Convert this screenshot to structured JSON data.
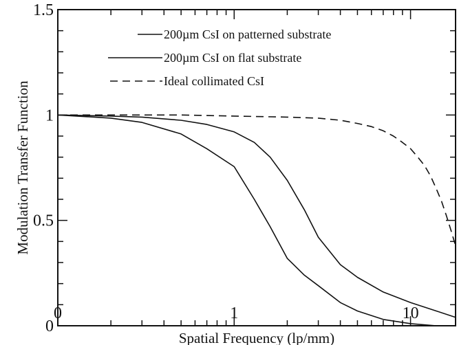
{
  "chart_data": {
    "type": "line",
    "xlabel": "Spatial Frequency (lp/mm)",
    "ylabel": "Modulation Transfer Function",
    "xscale": "log",
    "xlim": [
      0.1,
      18
    ],
    "ylim": [
      0,
      1.5
    ],
    "grid": false,
    "legend_position": "top-center",
    "x_tick_labels": [
      {
        "value": 0.1,
        "label": "0"
      },
      {
        "value": 1,
        "label": "1"
      },
      {
        "value": 10,
        "label": "10"
      }
    ],
    "y_tick_labels": [
      {
        "value": 0,
        "label": "0"
      },
      {
        "value": 0.5,
        "label": "0.5"
      },
      {
        "value": 1,
        "label": "1"
      },
      {
        "value": 1.5,
        "label": "1.5"
      }
    ],
    "series": [
      {
        "name": "200µm CsI on patterned substrate",
        "style": "solid",
        "color": "#111111",
        "x": [
          0.1,
          0.2,
          0.3,
          0.5,
          0.7,
          1.0,
          1.3,
          1.6,
          2.0,
          2.5,
          3.0,
          4.0,
          5.0,
          7.0,
          10.0,
          14.0,
          18.0
        ],
        "y": [
          1.0,
          0.995,
          0.99,
          0.975,
          0.955,
          0.92,
          0.87,
          0.8,
          0.69,
          0.55,
          0.42,
          0.29,
          0.23,
          0.16,
          0.11,
          0.07,
          0.04
        ]
      },
      {
        "name": "200µm CsI on flat substrate",
        "style": "solid",
        "color": "#111111",
        "x": [
          0.1,
          0.2,
          0.3,
          0.5,
          0.7,
          1.0,
          1.3,
          1.6,
          2.0,
          2.5,
          3.0,
          4.0,
          5.0,
          7.0,
          10.0,
          14.0
        ],
        "y": [
          1.0,
          0.985,
          0.965,
          0.91,
          0.84,
          0.755,
          0.6,
          0.47,
          0.32,
          0.24,
          0.19,
          0.11,
          0.07,
          0.03,
          0.01,
          0.0
        ]
      },
      {
        "name": "Ideal collimated CsI",
        "style": "dashed",
        "color": "#111111",
        "x": [
          0.1,
          0.3,
          0.5,
          1.0,
          2.0,
          3.0,
          4.0,
          5.0,
          6.0,
          7.0,
          8.0,
          9.0,
          10.0,
          11.0,
          12.0,
          13.0,
          14.0,
          15.0,
          16.0,
          17.0,
          18.0
        ],
        "y": [
          1.0,
          1.0,
          1.0,
          0.995,
          0.99,
          0.985,
          0.975,
          0.96,
          0.945,
          0.925,
          0.9,
          0.87,
          0.84,
          0.8,
          0.76,
          0.71,
          0.65,
          0.59,
          0.52,
          0.45,
          0.38
        ]
      }
    ]
  }
}
